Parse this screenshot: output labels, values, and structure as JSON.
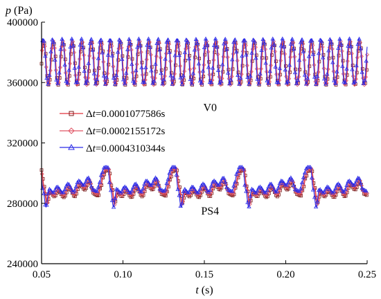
{
  "chart_data": {
    "type": "line",
    "ylabel": {
      "symbol": "p",
      "unit": " (Pa)"
    },
    "xlabel": {
      "symbol": "t",
      "unit": " (s)"
    },
    "xlim": [
      0.05,
      0.25
    ],
    "ylim": [
      240000,
      400000
    ],
    "xticks": [
      0.05,
      0.1,
      0.15,
      0.2,
      0.25
    ],
    "xtick_labels": [
      "0.05",
      "0.10",
      "0.15",
      "0.20",
      "0.25"
    ],
    "yticks": [
      240000,
      280000,
      320000,
      360000,
      400000
    ],
    "ytick_labels": [
      "240000",
      "280000",
      "320000",
      "360000",
      "400000"
    ],
    "grid": false,
    "legend_position": "middle-left",
    "annotations": [
      {
        "text": "V0",
        "x": 0.1535,
        "y": 341000
      },
      {
        "text": "PS4",
        "x": 0.1535,
        "y": 272500
      }
    ],
    "series": [
      {
        "name": "Δt=0.0001077586s",
        "legend_prefix": "Δ",
        "legend_var": "t",
        "legend_value": "=0.0001077586s",
        "color": "#e0303a",
        "marker": "square",
        "V0": {
          "mean": 372500,
          "amp": 14000,
          "period": 0.00588,
          "phase": 0.0
        },
        "PS4": {
          "period": 0.0415,
          "phase": 0.0,
          "knots": [
            [
              0,
              302000
            ],
            [
              0.04,
              291000
            ],
            [
              0.085,
              280500
            ],
            [
              0.13,
              287000
            ],
            [
              0.19,
              284500
            ],
            [
              0.25,
              288000
            ],
            [
              0.33,
              284000
            ],
            [
              0.41,
              290000
            ],
            [
              0.49,
              284500
            ],
            [
              0.57,
              292000
            ],
            [
              0.64,
              289000
            ],
            [
              0.71,
              294000
            ],
            [
              0.78,
              286000
            ],
            [
              0.84,
              285000
            ],
            [
              0.88,
              291000
            ],
            [
              0.91,
              297000
            ],
            [
              0.95,
              301500
            ],
            [
              1.0,
              302000
            ]
          ]
        }
      },
      {
        "name": "Δt=0.0002155172s",
        "legend_prefix": "Δ",
        "legend_var": "t",
        "legend_value": "=0.0002155172s",
        "color": "#e05565",
        "marker": "diamond",
        "V0": {
          "mean": 373000,
          "amp": 14500,
          "period": 0.00588,
          "phase": 0.0002
        },
        "PS4": {
          "period": 0.0415,
          "phase": 0.0003,
          "knots": [
            [
              0,
              303000
            ],
            [
              0.04,
              290000
            ],
            [
              0.085,
              279000
            ],
            [
              0.13,
              288000
            ],
            [
              0.19,
              285500
            ],
            [
              0.25,
              289500
            ],
            [
              0.33,
              285500
            ],
            [
              0.41,
              291500
            ],
            [
              0.49,
              286000
            ],
            [
              0.57,
              293500
            ],
            [
              0.64,
              290500
            ],
            [
              0.71,
              295500
            ],
            [
              0.78,
              287500
            ],
            [
              0.84,
              286500
            ],
            [
              0.88,
              292500
            ],
            [
              0.91,
              298500
            ],
            [
              0.95,
              303000
            ],
            [
              1.0,
              303000
            ]
          ]
        }
      },
      {
        "name": "Δt=0.0004310344s",
        "legend_prefix": "Δ",
        "legend_var": "t",
        "legend_value": "=0.0004310344s",
        "color": "#2a2ae8",
        "marker": "triangle",
        "V0": {
          "mean": 374000,
          "amp": 15000,
          "period": 0.00588,
          "phase": 0.0005
        },
        "PS4": {
          "period": 0.0415,
          "phase": 0.0008,
          "knots": [
            [
              0,
              304000
            ],
            [
              0.04,
              289000
            ],
            [
              0.085,
              277500
            ],
            [
              0.13,
              289500
            ],
            [
              0.19,
              287000
            ],
            [
              0.25,
              291000
            ],
            [
              0.33,
              287000
            ],
            [
              0.41,
              293000
            ],
            [
              0.49,
              287500
            ],
            [
              0.57,
              295000
            ],
            [
              0.64,
              292000
            ],
            [
              0.71,
              297000
            ],
            [
              0.78,
              289000
            ],
            [
              0.84,
              288000
            ],
            [
              0.88,
              294000
            ],
            [
              0.91,
              300000
            ],
            [
              0.95,
              304000
            ],
            [
              1.0,
              304000
            ]
          ]
        }
      }
    ]
  }
}
